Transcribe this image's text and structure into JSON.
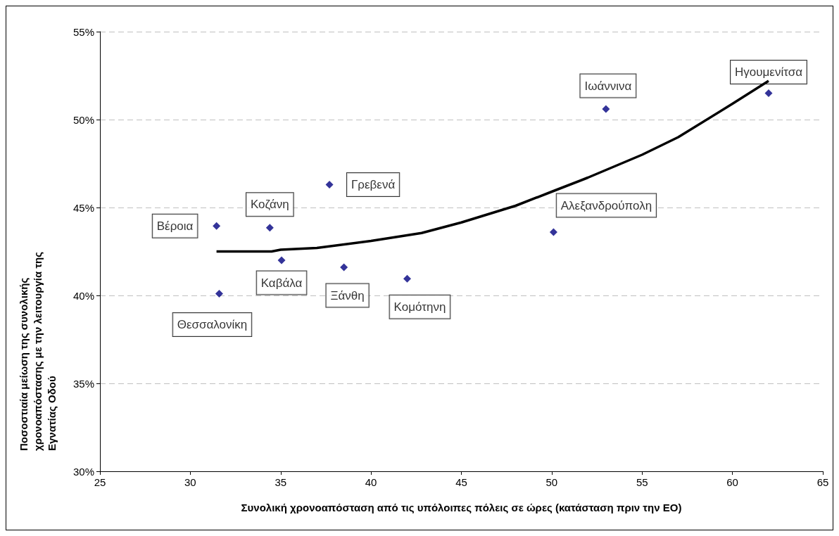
{
  "chart_data": {
    "type": "scatter",
    "xlabel": "Συνολική χρονοαπόσταση από τις υπόλοιπες πόλεις σε ώρες (κατάσταση πριν την ΕΟ)",
    "ylabel": "Ποσοστιαία μείωση της συνολικής χρονοαπόστασης με την λειτουργία της Εγνατίας Οδού",
    "x": [
      31.45,
      31.6,
      34.4,
      35.05,
      37.7,
      38.5,
      42.0,
      50.1,
      53.0,
      62.0
    ],
    "series": [
      {
        "color": "#000080",
        "values": [
          43.95,
          40.1,
          43.85,
          42.0,
          46.3,
          41.6,
          40.95,
          43.6,
          50.6,
          51.5
        ]
      },
      {
        "type": "line",
        "color": "#000000",
        "marker": "none",
        "x": [
          31.45,
          34.5,
          35,
          37,
          40,
          42.8,
          45,
          48,
          50,
          52,
          55,
          57,
          60,
          62
        ],
        "values": [
          42.5,
          42.5,
          42.6,
          42.7,
          43.1,
          43.55,
          44.15,
          45.1,
          45.9,
          46.7,
          48.0,
          49.0,
          50.9,
          52.2
        ]
      }
    ],
    "annotations": [
      {
        "text": "Βέροια",
        "x": 31.45,
        "y": 43.95
      },
      {
        "text": "Θεσσαλονίκη",
        "x": 31.6,
        "y": 40.1
      },
      {
        "text": "Κοζάνη",
        "x": 34.4,
        "y": 43.85
      },
      {
        "text": "Καβάλα",
        "x": 35.05,
        "y": 42.0
      },
      {
        "text": "Γρεβενά",
        "x": 37.7,
        "y": 46.3
      },
      {
        "text": "Ξάνθη",
        "x": 38.5,
        "y": 41.6
      },
      {
        "text": "Κομότηνη",
        "x": 42.0,
        "y": 40.95
      },
      {
        "text": "Αλεξανδρούπολη",
        "x": 50.1,
        "y": 43.6
      },
      {
        "text": "Ιωάννινα",
        "x": 53.0,
        "y": 50.6
      },
      {
        "text": "Ηγουμενίτσα",
        "x": 62.0,
        "y": 51.5
      }
    ],
    "xlim": [
      25,
      65
    ],
    "xticks": [
      25,
      30,
      35,
      40,
      45,
      50,
      55,
      60,
      65
    ],
    "ylim": [
      30,
      55
    ],
    "yticks": [
      {
        "value": 30,
        "label": "30%"
      },
      {
        "value": 35,
        "label": "35%"
      },
      {
        "value": 40,
        "label": "40%"
      },
      {
        "value": 45,
        "label": "45%"
      },
      {
        "value": 50,
        "label": "50%"
      },
      {
        "value": 55,
        "label": "55%"
      }
    ],
    "grid": "y",
    "marker": "diamond"
  }
}
